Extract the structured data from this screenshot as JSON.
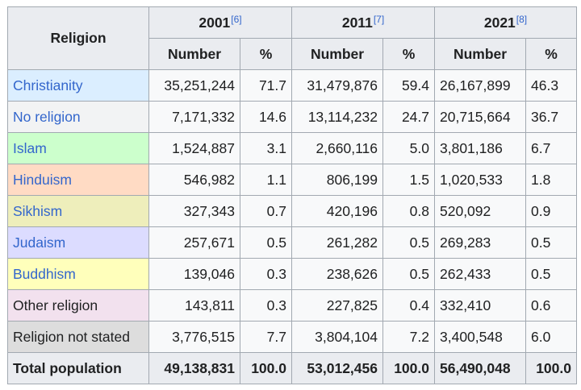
{
  "table": {
    "header_religion": "Religion",
    "years": [
      {
        "label": "2001",
        "ref": "[6]"
      },
      {
        "label": "2011",
        "ref": "[7]"
      },
      {
        "label": "2021",
        "ref": "[8]"
      }
    ],
    "sub_number": "Number",
    "sub_percent": "%",
    "rows": [
      {
        "religion": "Christianity",
        "link": true,
        "color": "#dbeeff",
        "n2001": "35,251,244",
        "p2001": "71.7",
        "n2011": "31,479,876",
        "p2011": "59.4",
        "n2021": "26,167,899",
        "p2021": "46.3"
      },
      {
        "religion": "No religion",
        "link": true,
        "color": "#f2f3f4",
        "n2001": "7,171,332",
        "p2001": "14.6",
        "n2011": "13,114,232",
        "p2011": "24.7",
        "n2021": "20,715,664",
        "p2021": "36.7"
      },
      {
        "religion": "Islam",
        "link": true,
        "color": "#ccffcc",
        "n2001": "1,524,887",
        "p2001": "3.1",
        "n2011": "2,660,116",
        "p2011": "5.0",
        "n2021": "3,801,186",
        "p2021": "6.7"
      },
      {
        "religion": "Hinduism",
        "link": true,
        "color": "#ffdbc4",
        "n2001": "546,982",
        "p2001": "1.1",
        "n2011": "806,199",
        "p2011": "1.5",
        "n2021": "1,020,533",
        "p2021": "1.8"
      },
      {
        "religion": "Sikhism",
        "link": true,
        "color": "#eeeebb",
        "n2001": "327,343",
        "p2001": "0.7",
        "n2011": "420,196",
        "p2011": "0.8",
        "n2021": "520,092",
        "p2021": "0.9"
      },
      {
        "religion": "Judaism",
        "link": true,
        "color": "#dcdcff",
        "n2001": "257,671",
        "p2001": "0.5",
        "n2011": "261,282",
        "p2011": "0.5",
        "n2021": "269,283",
        "p2021": "0.5"
      },
      {
        "religion": "Buddhism",
        "link": true,
        "color": "#ffffbb",
        "n2001": "139,046",
        "p2001": "0.3",
        "n2011": "238,626",
        "p2011": "0.5",
        "n2021": "262,433",
        "p2021": "0.5"
      },
      {
        "religion": "Other religion",
        "link": false,
        "color": "#f2e1ee",
        "n2001": "143,811",
        "p2001": "0.3",
        "n2011": "227,825",
        "p2011": "0.4",
        "n2021": "332,410",
        "p2021": "0.6"
      },
      {
        "religion": "Religion not stated",
        "link": false,
        "color": "#dddddd",
        "n2001": "3,776,515",
        "p2001": "7.7",
        "n2011": "3,804,104",
        "p2011": "7.2",
        "n2021": "3,400,548",
        "p2021": "6.0"
      }
    ],
    "total": {
      "label": "Total population",
      "n2001": "49,138,831",
      "p2001": "100.0",
      "n2011": "53,012,456",
      "p2011": "100.0",
      "n2021": "56,490,048",
      "p2021": "100.0"
    }
  }
}
